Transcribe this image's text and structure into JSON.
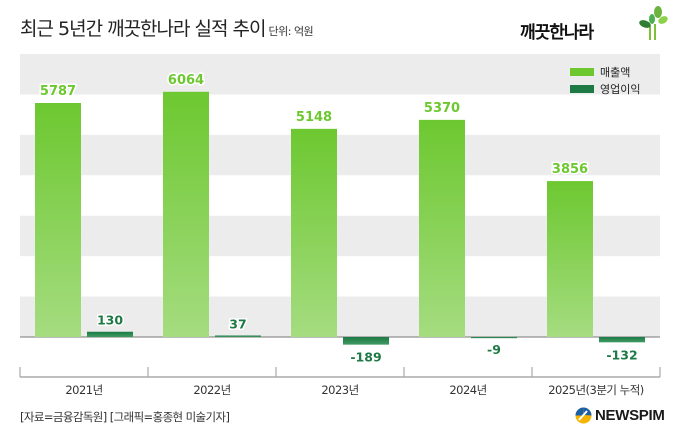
{
  "header": {
    "title": "최근 5년간 깨끗한나라 실적 추이",
    "unit": "단위: 억원"
  },
  "brand": {
    "logo_text": "깨끗한나라",
    "publisher": "NEWSPIM"
  },
  "footer": {
    "source": "[자료=금융감독원] [그래픽=홍종현 미술기자]"
  },
  "colors": {
    "revenue": "#6dc830",
    "revenue_light": "#a5dc80",
    "operating_profit": "#1e7a45",
    "band": "#ececec",
    "axis": "#888888"
  },
  "chart_data": {
    "type": "bar",
    "title": "최근 5년간 깨끗한나라 실적 추이",
    "unit": "단위: 억원",
    "xlabel": "",
    "ylabel": "",
    "categories": [
      "2021년",
      "2022년",
      "2023년",
      "2024년",
      "2025년(3분기 누적)"
    ],
    "series": [
      {
        "name": "매출액",
        "values": [
          5787,
          6064,
          5148,
          5370,
          3856
        ],
        "labels": [
          "5787",
          "6064",
          "5148",
          "5370",
          "3856"
        ]
      },
      {
        "name": "영업이익",
        "values": [
          130,
          37,
          -189,
          -9,
          -132
        ],
        "labels": [
          "130",
          "37",
          "-189",
          "-9",
          "-132"
        ]
      }
    ],
    "ylim": [
      -500,
      7000
    ],
    "grid": "alternating bands",
    "legend": "top-right"
  }
}
